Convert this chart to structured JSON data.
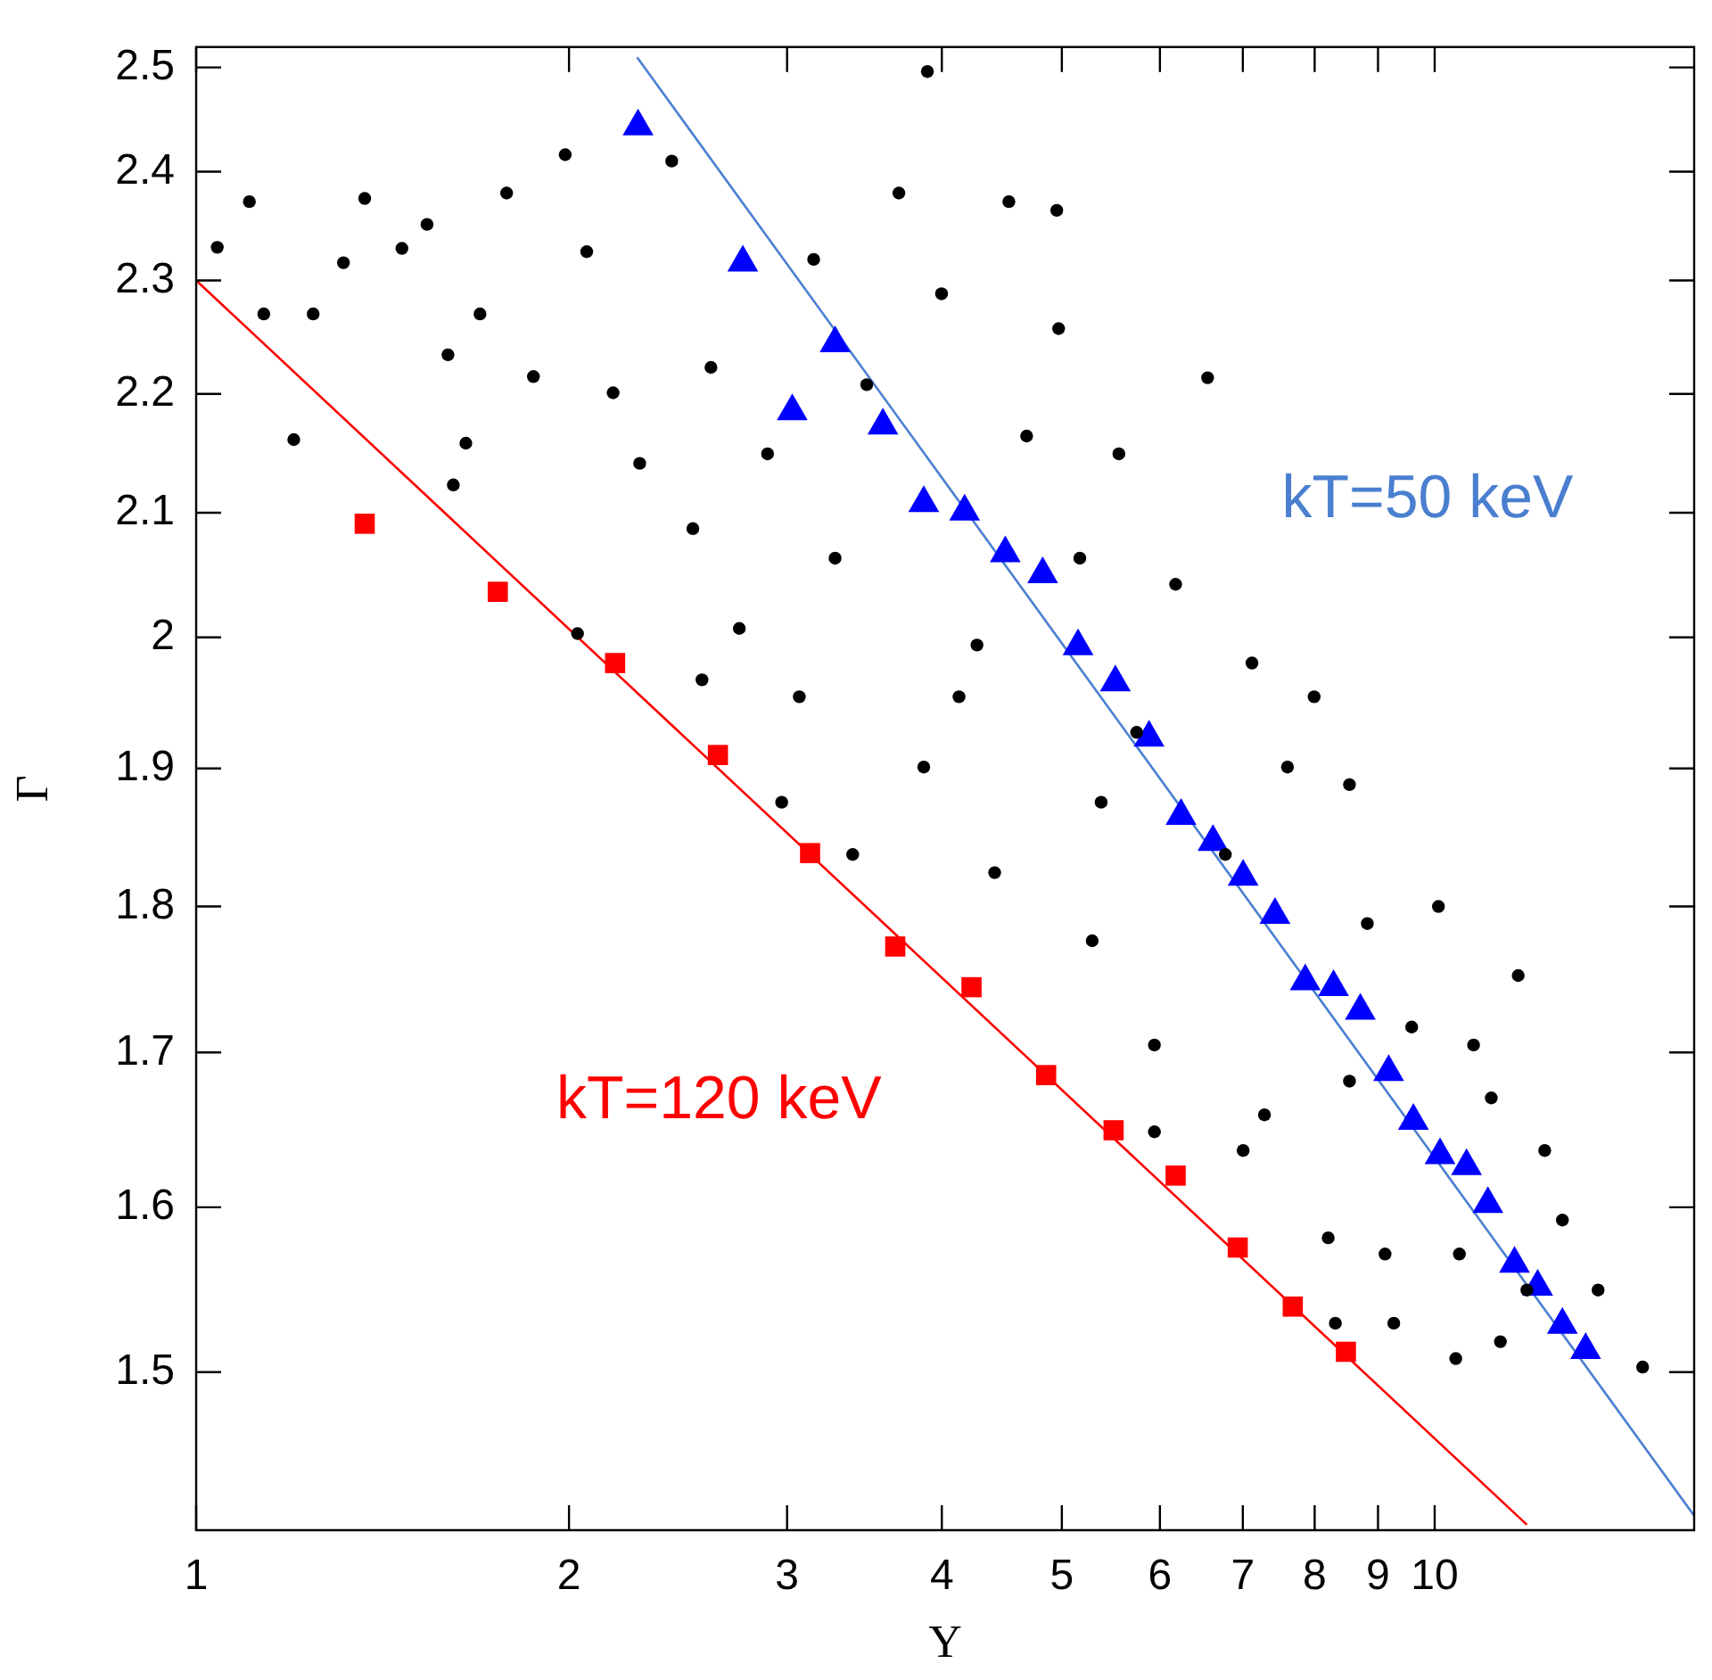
{
  "chart_data": {
    "type": "scatter",
    "xlabel": "Y",
    "ylabel": "Γ",
    "log": "xy",
    "grid": false,
    "xlim": [
      1,
      16.2
    ],
    "ylim": [
      1.41,
      2.52
    ],
    "xticks": [
      1,
      2,
      3,
      4,
      5,
      6,
      7,
      8,
      9,
      10
    ],
    "yticks": [
      1.5,
      1.6,
      1.7,
      1.8,
      1.9,
      2,
      2.1,
      2.2,
      2.3,
      2.4,
      2.5
    ],
    "annotations": [
      "kT=50 keV",
      "kT=120 keV"
    ],
    "series": [
      {
        "type": "line",
        "color": "#4a7fd0",
        "marker": "none",
        "x": [
          2.27,
          16.2
        ],
        "values": [
          2.51,
          1.418
        ]
      },
      {
        "type": "line",
        "color": "#ff0000",
        "marker": "none",
        "x": [
          1,
          11.87
        ],
        "values": [
          2.3,
          1.413
        ]
      },
      {
        "color": "#000000",
        "marker": "circle",
        "x": [
          1.04,
          1.104,
          1.134,
          1.199,
          1.243,
          1.315,
          1.368,
          1.466,
          1.536,
          1.597,
          1.613,
          1.651,
          1.695,
          1.781,
          1.872,
          1.986,
          2.032,
          2.067,
          2.171,
          2.281,
          2.421,
          2.518,
          2.561,
          2.604,
          2.745,
          2.893,
          2.97,
          3.152,
          3.28,
          3.389,
          3.479,
          3.693,
          3.894,
          3.868,
          3.998,
          4.27,
          4.413,
          4.531,
          4.683,
          4.953,
          4.97,
          5.17,
          5.29,
          5.559,
          5.746,
          5.939,
          6.178,
          6.556,
          6.776,
          7.12,
          7.287,
          7.606,
          7.992,
          8.204,
          8.314,
          8.535,
          8.823,
          9.268,
          9.581,
          10.07,
          10.4,
          10.47,
          11.11,
          11.3,
          11.68,
          12.27,
          12.68,
          13.55,
          14.72,
          5.939,
          7.004,
          9.119,
          11.87,
          4.13,
          3.069,
          5.379,
          8.535,
          10.75
        ],
        "values": [
          2.33,
          2.372,
          2.27,
          2.161,
          2.27,
          2.316,
          2.375,
          2.329,
          2.351,
          2.234,
          2.123,
          2.158,
          2.27,
          2.38,
          2.215,
          2.416,
          2.003,
          2.326,
          2.201,
          2.141,
          2.41,
          2.087,
          1.967,
          2.223,
          2.007,
          2.149,
          1.875,
          2.319,
          2.063,
          1.837,
          2.208,
          2.38,
          2.496,
          1.901,
          2.288,
          1.994,
          1.824,
          2.372,
          2.164,
          2.364,
          2.257,
          2.063,
          1.776,
          2.149,
          1.927,
          1.705,
          2.042,
          2.214,
          1.837,
          1.98,
          1.659,
          1.901,
          1.954,
          1.581,
          1.529,
          1.888,
          1.788,
          1.529,
          1.717,
          1.8,
          1.508,
          1.571,
          1.67,
          1.518,
          1.752,
          1.636,
          1.592,
          1.549,
          1.503,
          1.648,
          1.636,
          1.571,
          1.549,
          1.954,
          1.954,
          1.875,
          1.681,
          1.705
        ]
      },
      {
        "color": "#ff0000",
        "marker": "square",
        "x": [
          1.368,
          1.752,
          2.179,
          2.638,
          3.131,
          3.668,
          4.227,
          4.856,
          5.505,
          6.178,
          6.934,
          7.681,
          8.479
        ],
        "values": [
          2.091,
          2.036,
          1.98,
          1.91,
          1.838,
          1.772,
          1.744,
          1.685,
          1.649,
          1.62,
          1.575,
          1.539,
          1.512
        ]
      },
      {
        "color": "#0000ff",
        "marker": "triangle",
        "x": [
          2.274,
          2.763,
          3.029,
          3.28,
          3.585,
          3.868,
          4.173,
          4.501,
          4.825,
          5.153,
          5.523,
          5.88,
          6.24,
          6.622,
          7.004,
          7.431,
          7.861,
          8.286,
          8.709,
          9.18,
          9.612,
          10.1,
          10.61,
          11.04,
          11.6,
          12.11,
          12.68,
          13.24
        ],
        "values": [
          2.443,
          2.316,
          2.185,
          2.244,
          2.173,
          2.108,
          2.101,
          2.067,
          2.05,
          1.993,
          1.965,
          1.923,
          1.865,
          1.846,
          1.821,
          1.794,
          1.748,
          1.744,
          1.728,
          1.687,
          1.655,
          1.633,
          1.626,
          1.602,
          1.565,
          1.551,
          1.528,
          1.513
        ]
      }
    ]
  }
}
